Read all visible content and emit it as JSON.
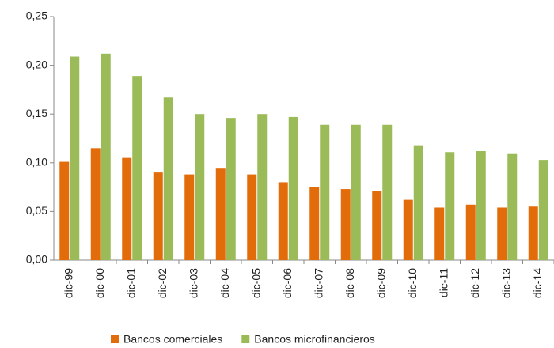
{
  "chart_data": {
    "type": "bar",
    "categories": [
      "dic-99",
      "dic-00",
      "dic-01",
      "dic-02",
      "dic-03",
      "dic-04",
      "dic-05",
      "dic-06",
      "dic-07",
      "dic-08",
      "dic-09",
      "dic-10",
      "dic-11",
      "dic-12",
      "dic-13",
      "dic-14"
    ],
    "series": [
      {
        "name": "Bancos comerciales",
        "color": "#e36c0a",
        "values": [
          0.101,
          0.115,
          0.105,
          0.09,
          0.088,
          0.094,
          0.088,
          0.08,
          0.075,
          0.073,
          0.071,
          0.062,
          0.054,
          0.057,
          0.054,
          0.055
        ]
      },
      {
        "name": "Bancos microfinancieros",
        "color": "#9bbb59",
        "values": [
          0.209,
          0.212,
          0.189,
          0.167,
          0.15,
          0.146,
          0.15,
          0.147,
          0.139,
          0.139,
          0.139,
          0.118,
          0.111,
          0.112,
          0.109,
          0.103
        ]
      }
    ],
    "ylim": [
      0,
      0.25
    ],
    "yticks": [
      {
        "value": 0,
        "label": "0,00"
      },
      {
        "value": 0.05,
        "label": "0,05"
      },
      {
        "value": 0.1,
        "label": "0,10"
      },
      {
        "value": 0.15,
        "label": "0,15"
      },
      {
        "value": 0.2,
        "label": "0,20"
      },
      {
        "value": 0.25,
        "label": "0,25"
      }
    ],
    "grid": false,
    "legend": "bottom"
  }
}
